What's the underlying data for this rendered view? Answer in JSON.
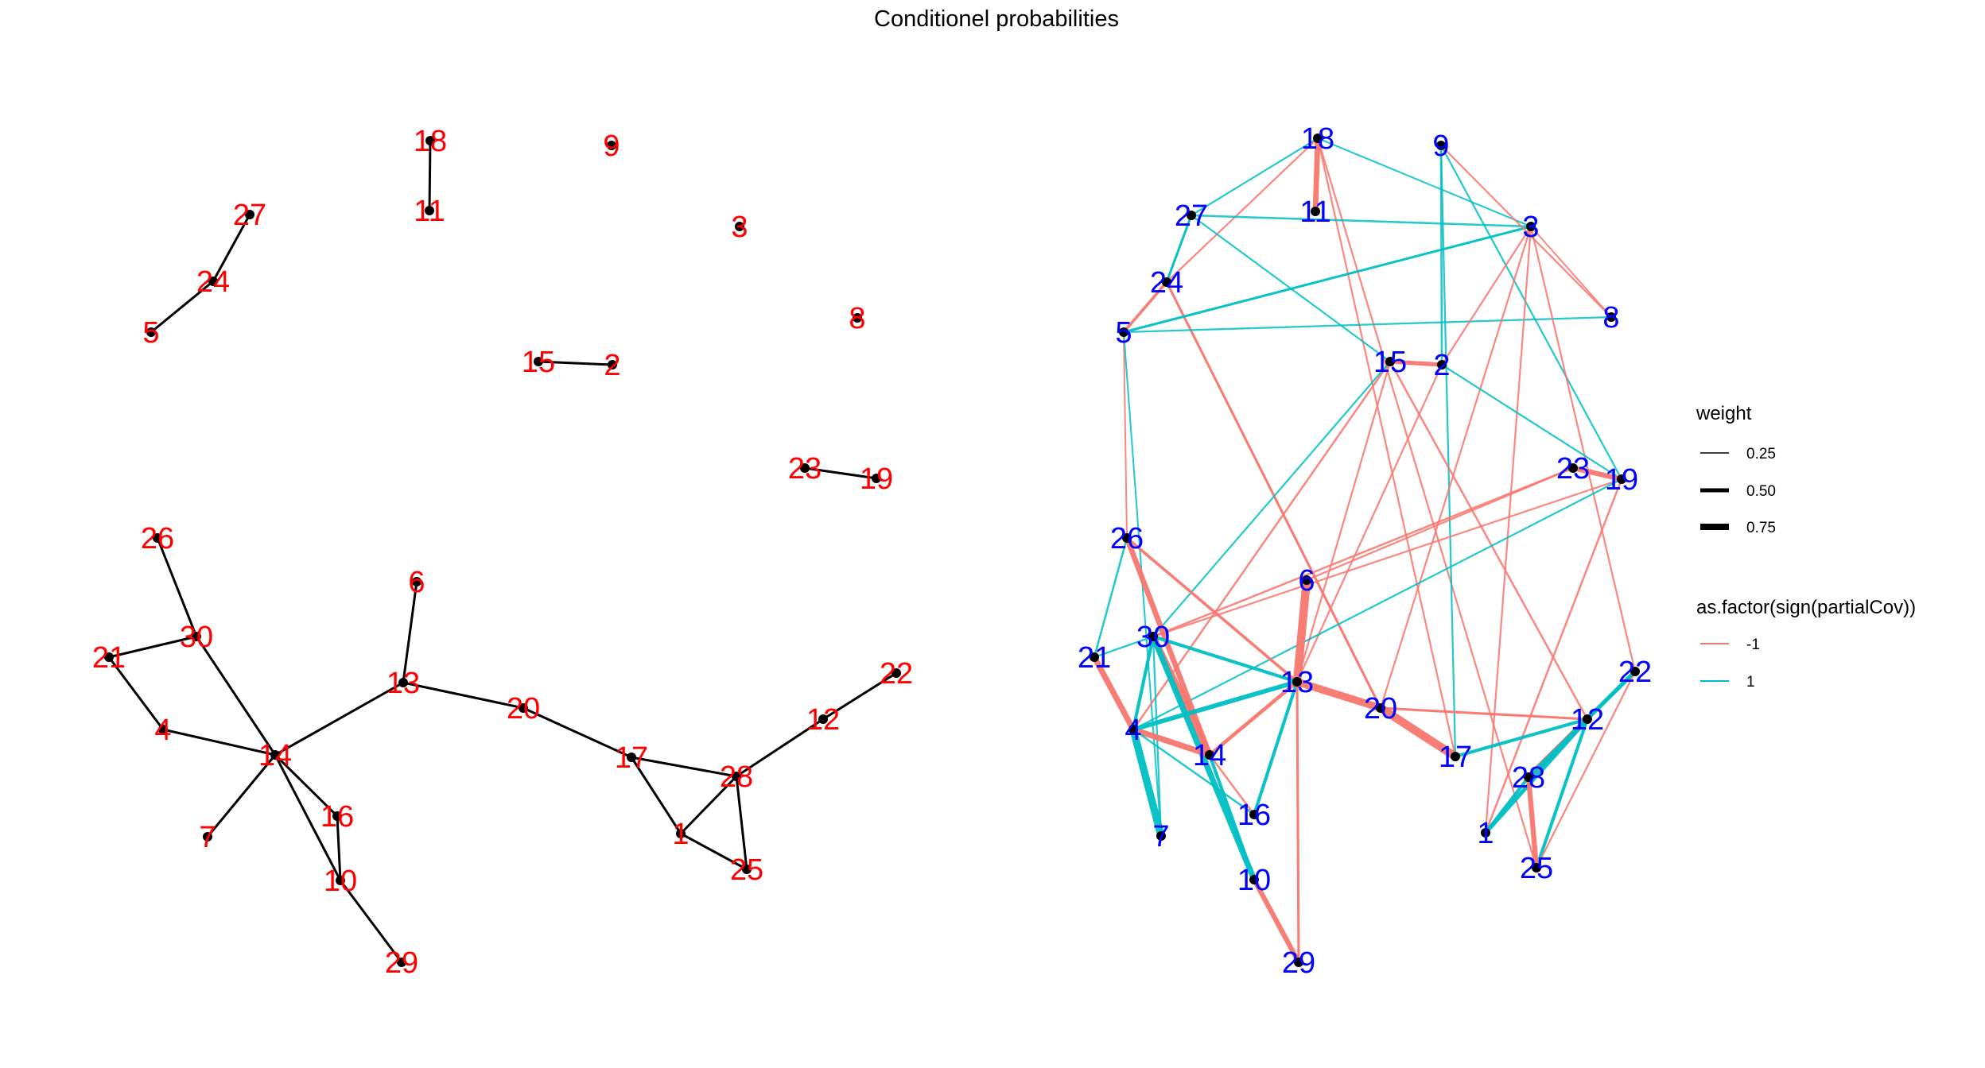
{
  "title": "Conditionel probabilities",
  "colors": {
    "background": "#ffffff",
    "node_point": "#000000",
    "left_edge": "#000000",
    "left_label": "#ff0000",
    "right_label": "#0000ff",
    "negative_edge": "#f8766d",
    "positive_edge": "#00bfc4"
  },
  "nodes": [
    "1",
    "2",
    "3",
    "4",
    "5",
    "6",
    "7",
    "8",
    "9",
    "10",
    "11",
    "12",
    "13",
    "14",
    "15",
    "16",
    "17",
    "18",
    "19",
    "20",
    "21",
    "22",
    "23",
    "24",
    "25",
    "26",
    "27",
    "28",
    "29",
    "30"
  ],
  "left_graph": {
    "edges": [
      [
        "18",
        "11"
      ],
      [
        "27",
        "24"
      ],
      [
        "24",
        "5"
      ],
      [
        "15",
        "2"
      ],
      [
        "23",
        "19"
      ],
      [
        "26",
        "30"
      ],
      [
        "30",
        "21"
      ],
      [
        "21",
        "4"
      ],
      [
        "4",
        "14"
      ],
      [
        "30",
        "14"
      ],
      [
        "14",
        "7"
      ],
      [
        "14",
        "16"
      ],
      [
        "16",
        "10"
      ],
      [
        "14",
        "10"
      ],
      [
        "10",
        "29"
      ],
      [
        "14",
        "13"
      ],
      [
        "6",
        "13"
      ],
      [
        "13",
        "20"
      ],
      [
        "20",
        "17"
      ],
      [
        "17",
        "28"
      ],
      [
        "17",
        "1"
      ],
      [
        "1",
        "28"
      ],
      [
        "1",
        "25"
      ],
      [
        "28",
        "25"
      ],
      [
        "28",
        "12"
      ],
      [
        "12",
        "22"
      ]
    ]
  },
  "right_graph": {
    "edges": [
      {
        "from": "18",
        "to": "11",
        "sign": -1,
        "weight": 0.55
      },
      {
        "from": "18",
        "to": "27",
        "sign": 1,
        "weight": 0.12
      },
      {
        "from": "18",
        "to": "24",
        "sign": -1,
        "weight": 0.12
      },
      {
        "from": "18",
        "to": "3",
        "sign": 1,
        "weight": 0.1
      },
      {
        "from": "18",
        "to": "17",
        "sign": -1,
        "weight": 0.12
      },
      {
        "from": "18",
        "to": "25",
        "sign": -1,
        "weight": 0.12
      },
      {
        "from": "27",
        "to": "3",
        "sign": 1,
        "weight": 0.15
      },
      {
        "from": "27",
        "to": "24",
        "sign": 1,
        "weight": 0.2
      },
      {
        "from": "27",
        "to": "15",
        "sign": 1,
        "weight": 0.12
      },
      {
        "from": "24",
        "to": "5",
        "sign": -1,
        "weight": 0.25
      },
      {
        "from": "24",
        "to": "20",
        "sign": -1,
        "weight": 0.2
      },
      {
        "from": "5",
        "to": "3",
        "sign": 1,
        "weight": 0.2
      },
      {
        "from": "5",
        "to": "8",
        "sign": 1,
        "weight": 0.12
      },
      {
        "from": "5",
        "to": "26",
        "sign": -1,
        "weight": 0.1
      },
      {
        "from": "5",
        "to": "7",
        "sign": 1,
        "weight": 0.1
      },
      {
        "from": "9",
        "to": "2",
        "sign": 1,
        "weight": 0.15
      },
      {
        "from": "9",
        "to": "17",
        "sign": 1,
        "weight": 0.12
      },
      {
        "from": "9",
        "to": "8",
        "sign": -1,
        "weight": 0.12
      },
      {
        "from": "9",
        "to": "19",
        "sign": 1,
        "weight": 0.12
      },
      {
        "from": "3",
        "to": "8",
        "sign": -1,
        "weight": 0.1
      },
      {
        "from": "3",
        "to": "2",
        "sign": -1,
        "weight": 0.12
      },
      {
        "from": "3",
        "to": "20",
        "sign": -1,
        "weight": 0.12
      },
      {
        "from": "3",
        "to": "22",
        "sign": -1,
        "weight": 0.12
      },
      {
        "from": "3",
        "to": "1",
        "sign": -1,
        "weight": 0.12
      },
      {
        "from": "15",
        "to": "2",
        "sign": -1,
        "weight": 0.4
      },
      {
        "from": "15",
        "to": "4",
        "sign": -1,
        "weight": 0.15
      },
      {
        "from": "15",
        "to": "30",
        "sign": 1,
        "weight": 0.12
      },
      {
        "from": "15",
        "to": "13",
        "sign": -1,
        "weight": 0.12
      },
      {
        "from": "15",
        "to": "12",
        "sign": -1,
        "weight": 0.15
      },
      {
        "from": "2",
        "to": "19",
        "sign": 1,
        "weight": 0.12
      },
      {
        "from": "2",
        "to": "13",
        "sign": -1,
        "weight": 0.12
      },
      {
        "from": "23",
        "to": "19",
        "sign": -1,
        "weight": 0.5
      },
      {
        "from": "23",
        "to": "30",
        "sign": -1,
        "weight": 0.15
      },
      {
        "from": "19",
        "to": "30",
        "sign": -1,
        "weight": 0.12
      },
      {
        "from": "19",
        "to": "4",
        "sign": 1,
        "weight": 0.12
      },
      {
        "from": "19",
        "to": "1",
        "sign": -1,
        "weight": 0.15
      },
      {
        "from": "26",
        "to": "21",
        "sign": 1,
        "weight": 0.15
      },
      {
        "from": "26",
        "to": "14",
        "sign": -1,
        "weight": 0.55
      },
      {
        "from": "26",
        "to": "13",
        "sign": -1,
        "weight": 0.25
      },
      {
        "from": "21",
        "to": "30",
        "sign": 1,
        "weight": 0.12
      },
      {
        "from": "21",
        "to": "4",
        "sign": -1,
        "weight": 0.6
      },
      {
        "from": "30",
        "to": "4",
        "sign": 1,
        "weight": 0.3
      },
      {
        "from": "30",
        "to": "14",
        "sign": -1,
        "weight": 0.7
      },
      {
        "from": "30",
        "to": "10",
        "sign": 1,
        "weight": 0.6
      },
      {
        "from": "30",
        "to": "13",
        "sign": 1,
        "weight": 0.3
      },
      {
        "from": "30",
        "to": "7",
        "sign": 1,
        "weight": 0.12
      },
      {
        "from": "4",
        "to": "14",
        "sign": -1,
        "weight": 0.6
      },
      {
        "from": "4",
        "to": "7",
        "sign": 1,
        "weight": 0.8
      },
      {
        "from": "4",
        "to": "13",
        "sign": 1,
        "weight": 0.45
      },
      {
        "from": "4",
        "to": "16",
        "sign": 1,
        "weight": 0.15
      },
      {
        "from": "14",
        "to": "13",
        "sign": -1,
        "weight": 0.35
      },
      {
        "from": "14",
        "to": "16",
        "sign": -1,
        "weight": 0.15
      },
      {
        "from": "14",
        "to": "10",
        "sign": 1,
        "weight": 0.3
      },
      {
        "from": "10",
        "to": "29",
        "sign": -1,
        "weight": 0.5
      },
      {
        "from": "6",
        "to": "13",
        "sign": -1,
        "weight": 0.9
      },
      {
        "from": "13",
        "to": "20",
        "sign": -1,
        "weight": 0.8
      },
      {
        "from": "13",
        "to": "16",
        "sign": 1,
        "weight": 0.3
      },
      {
        "from": "13",
        "to": "29",
        "sign": -1,
        "weight": 0.2
      },
      {
        "from": "20",
        "to": "17",
        "sign": -1,
        "weight": 0.9
      },
      {
        "from": "20",
        "to": "12",
        "sign": -1,
        "weight": 0.2
      },
      {
        "from": "17",
        "to": "12",
        "sign": 1,
        "weight": 0.3
      },
      {
        "from": "12",
        "to": "28",
        "sign": -1,
        "weight": 0.6
      },
      {
        "from": "12",
        "to": "1",
        "sign": 1,
        "weight": 0.4
      },
      {
        "from": "12",
        "to": "25",
        "sign": 1,
        "weight": 0.3
      },
      {
        "from": "22",
        "to": "28",
        "sign": 1,
        "weight": 0.4
      },
      {
        "from": "22",
        "to": "25",
        "sign": -1,
        "weight": 0.12
      },
      {
        "from": "28",
        "to": "25",
        "sign": -1,
        "weight": 0.5
      },
      {
        "from": "28",
        "to": "1",
        "sign": 1,
        "weight": 0.3
      },
      {
        "from": "6",
        "to": "23",
        "sign": -1,
        "weight": 0.12
      },
      {
        "from": "22",
        "to": "12",
        "sign": 1,
        "weight": 0.2
      }
    ]
  },
  "legend": {
    "weight": {
      "title": "weight",
      "items": [
        {
          "label": "0.25",
          "value": 0.25
        },
        {
          "label": "0.50",
          "value": 0.5
        },
        {
          "label": "0.75",
          "value": 0.75
        }
      ]
    },
    "color": {
      "title": "as.factor(sign(partialCov))",
      "items": [
        {
          "label": "-1",
          "color": "#f8766d"
        },
        {
          "label": "1",
          "color": "#00bfc4"
        }
      ]
    }
  }
}
